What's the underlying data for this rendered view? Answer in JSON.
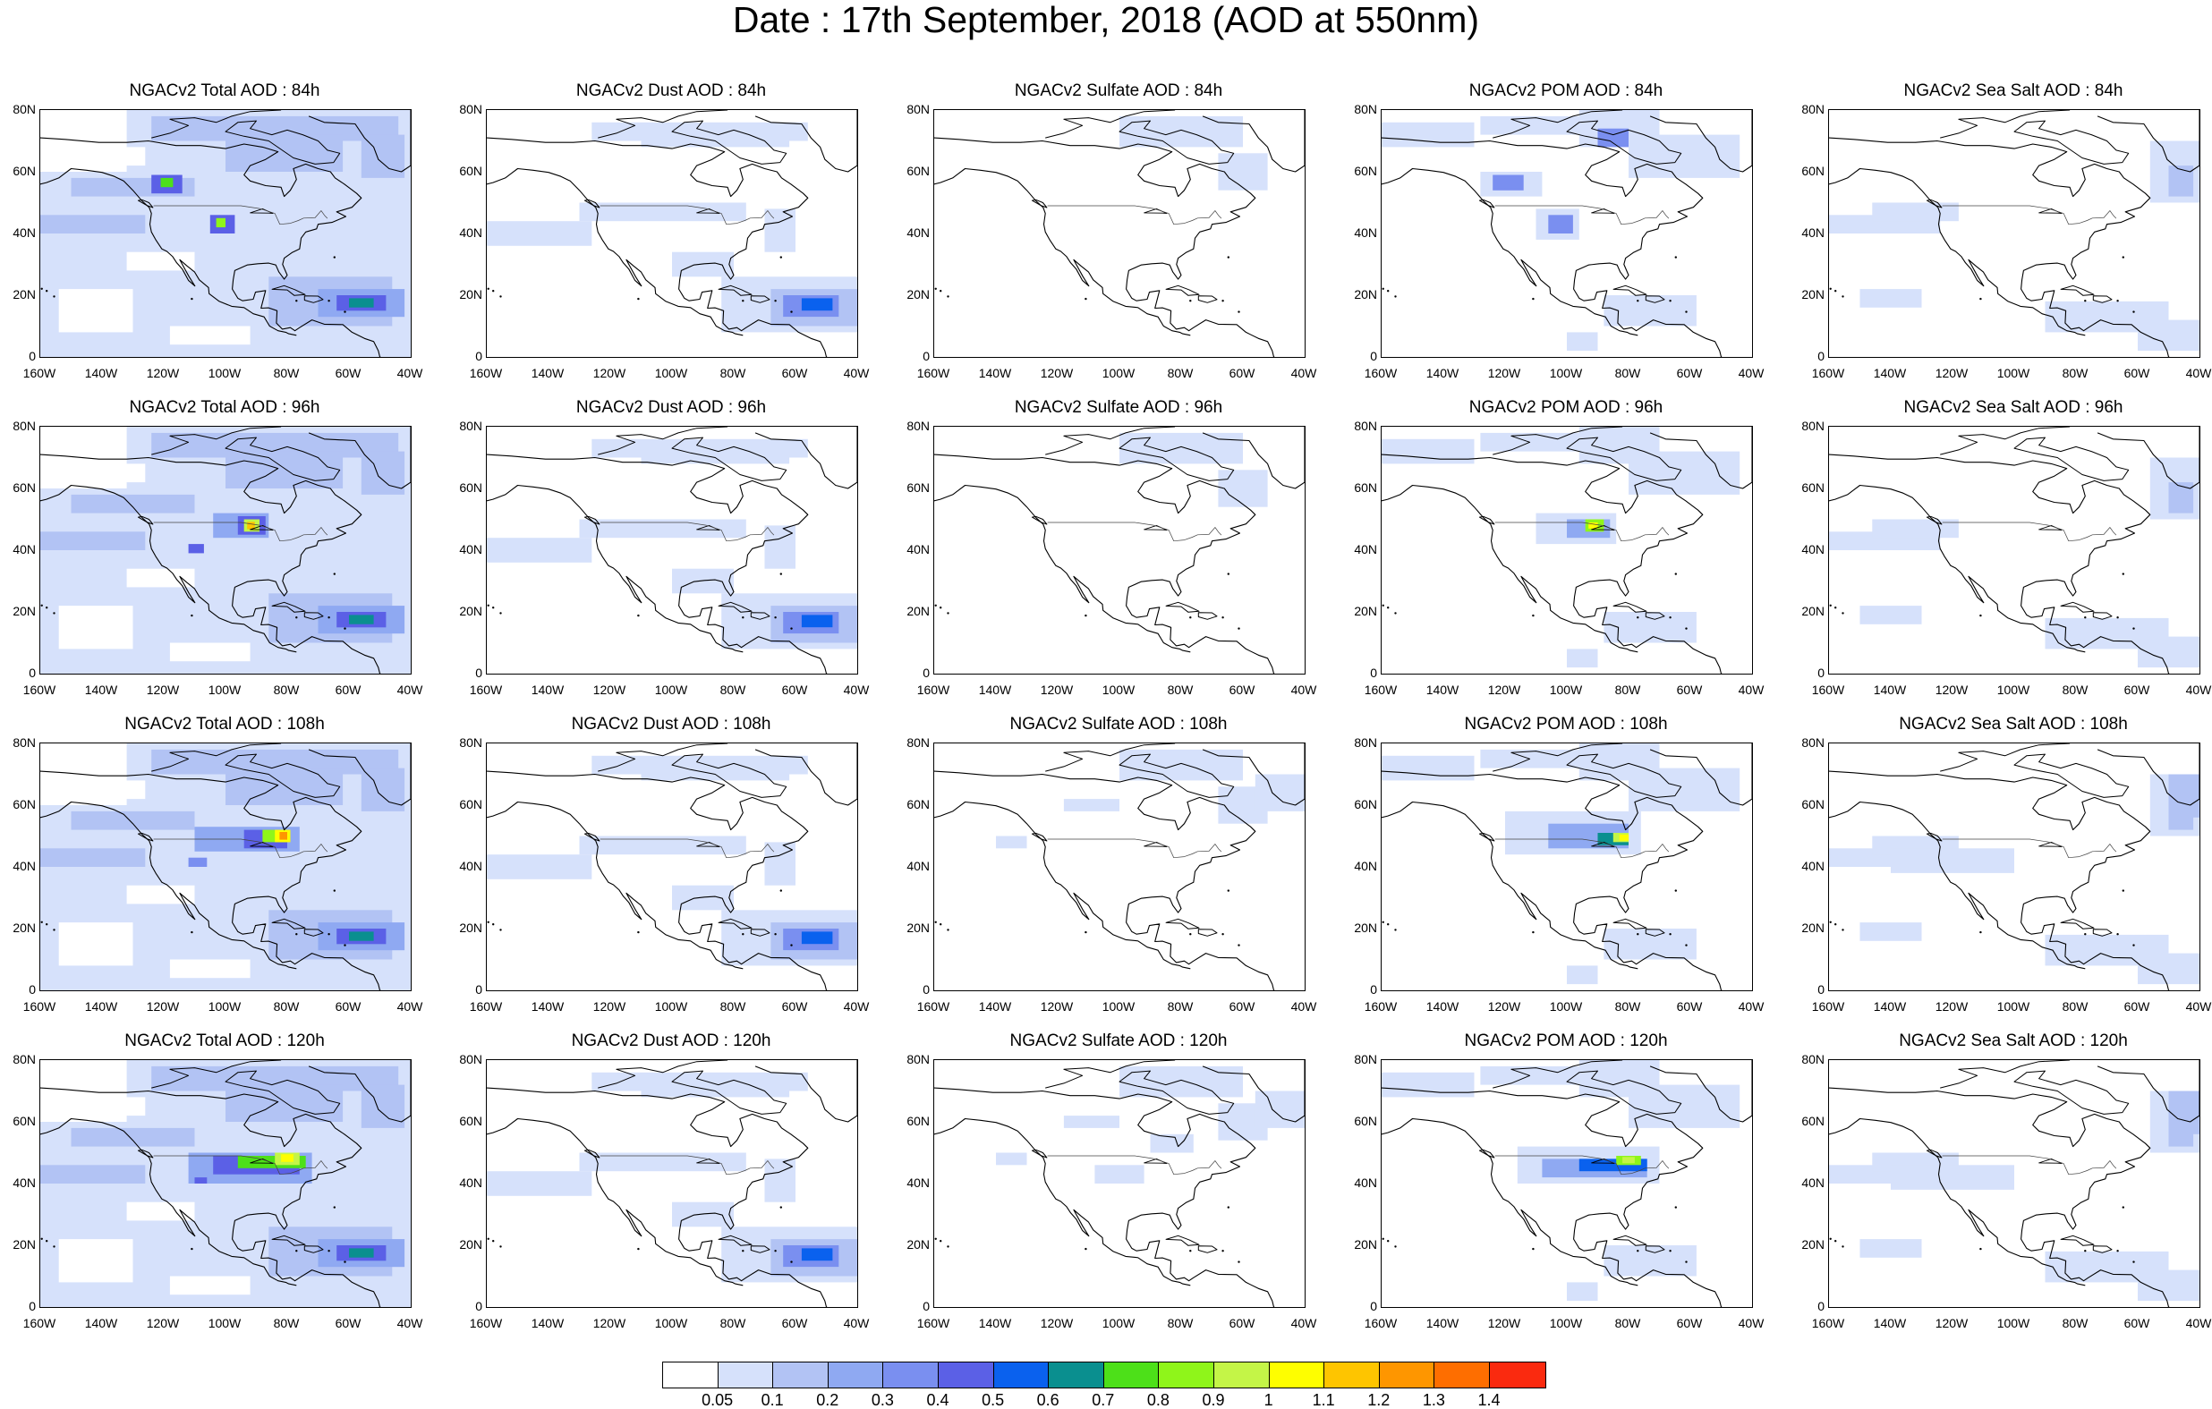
{
  "figure_title": "Date : 17th September, 2018 (AOD at 550nm)",
  "axes": {
    "y_ticks": [
      "80N",
      "60N",
      "40N",
      "20N",
      "0"
    ],
    "x_ticks": [
      "160W",
      "140W",
      "120W",
      "100W",
      "80W",
      "60W",
      "40W"
    ]
  },
  "panels": [
    {
      "title": "NGACv2 Total AOD : 84h",
      "species": "total",
      "lead_h": 84
    },
    {
      "title": "NGACv2 Dust AOD : 84h",
      "species": "dust",
      "lead_h": 84
    },
    {
      "title": "NGACv2 Sulfate AOD : 84h",
      "species": "sulfate",
      "lead_h": 84
    },
    {
      "title": "NGACv2 POM AOD : 84h",
      "species": "pom",
      "lead_h": 84
    },
    {
      "title": "NGACv2 Sea Salt AOD : 84h",
      "species": "seasalt",
      "lead_h": 84
    },
    {
      "title": "NGACv2 Total AOD : 96h",
      "species": "total",
      "lead_h": 96
    },
    {
      "title": "NGACv2 Dust AOD : 96h",
      "species": "dust",
      "lead_h": 96
    },
    {
      "title": "NGACv2 Sulfate AOD : 96h",
      "species": "sulfate",
      "lead_h": 96
    },
    {
      "title": "NGACv2 POM AOD : 96h",
      "species": "pom",
      "lead_h": 96
    },
    {
      "title": "NGACv2 Sea Salt AOD : 96h",
      "species": "seasalt",
      "lead_h": 96
    },
    {
      "title": "NGACv2 Total AOD : 108h",
      "species": "total",
      "lead_h": 108
    },
    {
      "title": "NGACv2 Dust AOD : 108h",
      "species": "dust",
      "lead_h": 108
    },
    {
      "title": "NGACv2 Sulfate AOD : 108h",
      "species": "sulfate",
      "lead_h": 108
    },
    {
      "title": "NGACv2 POM AOD : 108h",
      "species": "pom",
      "lead_h": 108
    },
    {
      "title": "NGACv2 Sea Salt  AOD : 108h",
      "species": "seasalt",
      "lead_h": 108
    },
    {
      "title": "NGACv2 Total AOD : 120h",
      "species": "total",
      "lead_h": 120
    },
    {
      "title": "NGACv2 Dust AOD : 120h",
      "species": "dust",
      "lead_h": 120
    },
    {
      "title": "NGACv2 Sulfate AOD : 120h",
      "species": "sulfate",
      "lead_h": 120
    },
    {
      "title": "NGACv2 POM AOD : 120h",
      "species": "pom",
      "lead_h": 120
    },
    {
      "title": "NGACv2 Sea Salt  AOD : 120h",
      "species": "seasalt",
      "lead_h": 120
    }
  ],
  "colorbar": {
    "labels": [
      "0.05",
      "0.1",
      "0.2",
      "0.3",
      "0.4",
      "0.5",
      "0.6",
      "0.7",
      "0.8",
      "0.9",
      "1",
      "1.1",
      "1.2",
      "1.3",
      "1.4"
    ],
    "colors": [
      "#ffffff",
      "#d6e1fb",
      "#b2c3f4",
      "#8fa9f2",
      "#7a8ff0",
      "#5b60e6",
      "#0a61ee",
      "#0a8f8f",
      "#4de019",
      "#8ff51a",
      "#c4f547",
      "#fefe00",
      "#fec500",
      "#fe9600",
      "#fe6e00",
      "#fa2a0f"
    ]
  },
  "chart_data": {
    "type": "heatmap",
    "title": "Date : 17th September, 2018 (AOD at 550nm)",
    "xlabel": "",
    "ylabel": "",
    "xlim": [
      -160,
      -40
    ],
    "ylim": [
      0,
      80
    ],
    "x_tick_labels": [
      "160W",
      "140W",
      "120W",
      "100W",
      "80W",
      "60W",
      "40W"
    ],
    "y_tick_labels": [
      "80N",
      "60N",
      "40N",
      "20N",
      "0"
    ],
    "levels": [
      0.05,
      0.1,
      0.2,
      0.3,
      0.4,
      0.5,
      0.6,
      0.7,
      0.8,
      0.9,
      1,
      1.1,
      1.2,
      1.3,
      1.4
    ],
    "rows_lead_hours": [
      84,
      96,
      108,
      120
    ],
    "columns_species": [
      "Total",
      "Dust",
      "Sulfate",
      "POM",
      "Sea Salt"
    ],
    "features": [
      {
        "species": "dust",
        "lead_h": 84,
        "lon": -52,
        "lat": 17,
        "aod": 0.6
      },
      {
        "species": "dust",
        "lead_h": 96,
        "lon": -52,
        "lat": 17,
        "aod": 0.5
      },
      {
        "species": "dust",
        "lead_h": 108,
        "lon": -60,
        "lat": 17,
        "aod": 0.5
      },
      {
        "species": "dust",
        "lead_h": 120,
        "lon": -62,
        "lat": 17,
        "aod": 0.6
      },
      {
        "species": "pom",
        "lead_h": 84,
        "lon": -120,
        "lat": 56,
        "aod": 0.6
      },
      {
        "species": "pom",
        "lead_h": 84,
        "lon": -102,
        "lat": 42,
        "aod": 0.5
      },
      {
        "species": "pom",
        "lead_h": 96,
        "lon": -92,
        "lat": 47,
        "aod": 1.1
      },
      {
        "species": "pom",
        "lead_h": 108,
        "lon": -82,
        "lat": 49,
        "aod": 1.1
      },
      {
        "species": "pom",
        "lead_h": 120,
        "lon": -78,
        "lat": 47,
        "aod": 1.0
      },
      {
        "species": "total",
        "lead_h": 84,
        "lon": -120,
        "lat": 56,
        "aod": 0.7
      },
      {
        "species": "total",
        "lead_h": 84,
        "lon": -102,
        "lat": 43,
        "aod": 0.8
      },
      {
        "species": "total",
        "lead_h": 84,
        "lon": -52,
        "lat": 17,
        "aod": 0.6
      },
      {
        "species": "total",
        "lead_h": 96,
        "lon": -92,
        "lat": 48,
        "aod": 1.3
      },
      {
        "species": "total",
        "lead_h": 96,
        "lon": -52,
        "lat": 17,
        "aod": 0.8
      },
      {
        "species": "total",
        "lead_h": 108,
        "lon": -82,
        "lat": 50,
        "aod": 1.3
      },
      {
        "species": "total",
        "lead_h": 108,
        "lon": -58,
        "lat": 16,
        "aod": 0.7
      },
      {
        "species": "total",
        "lead_h": 120,
        "lon": -78,
        "lat": 48,
        "aod": 1.1
      },
      {
        "species": "total",
        "lead_h": 120,
        "lon": -62,
        "lat": 17,
        "aod": 0.7
      },
      {
        "species": "sulfate",
        "lead_h": 108,
        "lon": -50,
        "lat": 60,
        "aod": 0.1
      },
      {
        "species": "seasalt",
        "lead_h": 120,
        "lon": -45,
        "lat": 55,
        "aod": 0.2
      }
    ]
  }
}
